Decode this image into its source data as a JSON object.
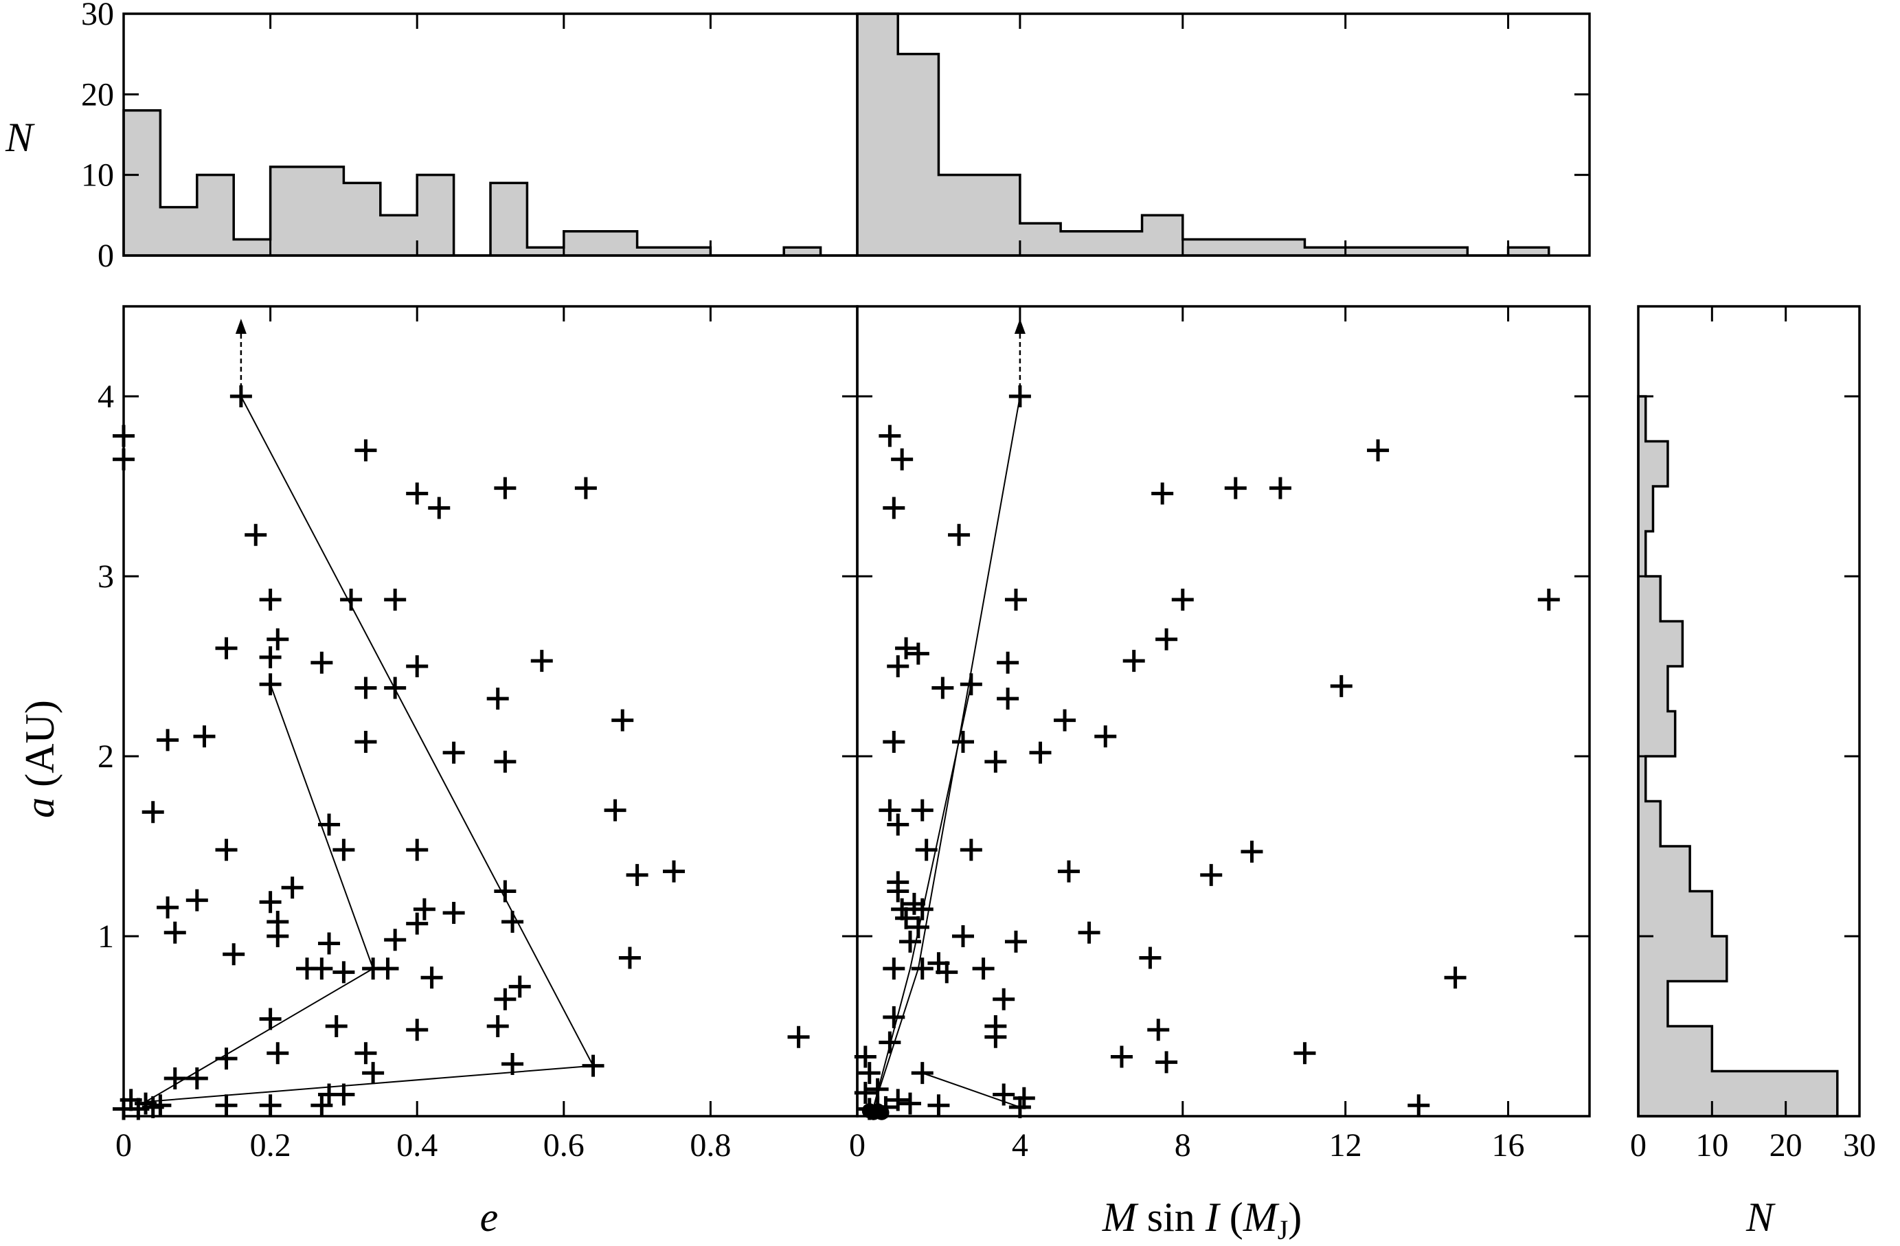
{
  "chart_data": [
    {
      "id": "hist_e",
      "type": "histogram",
      "ylabel": "N",
      "ylim": [
        0,
        30
      ],
      "yticks": [
        0,
        10,
        20,
        30
      ],
      "xlim": [
        0,
        1
      ],
      "bins": [
        {
          "x0": 0.0,
          "x1": 0.05,
          "n": 18
        },
        {
          "x0": 0.05,
          "x1": 0.1,
          "n": 6
        },
        {
          "x0": 0.1,
          "x1": 0.15,
          "n": 10
        },
        {
          "x0": 0.15,
          "x1": 0.2,
          "n": 2
        },
        {
          "x0": 0.2,
          "x1": 0.25,
          "n": 11
        },
        {
          "x0": 0.25,
          "x1": 0.3,
          "n": 11
        },
        {
          "x0": 0.3,
          "x1": 0.35,
          "n": 9
        },
        {
          "x0": 0.35,
          "x1": 0.4,
          "n": 5
        },
        {
          "x0": 0.4,
          "x1": 0.45,
          "n": 10
        },
        {
          "x0": 0.45,
          "x1": 0.5,
          "n": 0
        },
        {
          "x0": 0.5,
          "x1": 0.55,
          "n": 9
        },
        {
          "x0": 0.55,
          "x1": 0.6,
          "n": 1
        },
        {
          "x0": 0.6,
          "x1": 0.65,
          "n": 3
        },
        {
          "x0": 0.65,
          "x1": 0.7,
          "n": 3
        },
        {
          "x0": 0.7,
          "x1": 0.75,
          "n": 1
        },
        {
          "x0": 0.75,
          "x1": 0.8,
          "n": 1
        },
        {
          "x0": 0.8,
          "x1": 0.85,
          "n": 0
        },
        {
          "x0": 0.85,
          "x1": 0.9,
          "n": 0
        },
        {
          "x0": 0.9,
          "x1": 0.95,
          "n": 1
        },
        {
          "x0": 0.95,
          "x1": 1.0,
          "n": 0
        }
      ]
    },
    {
      "id": "hist_m",
      "type": "histogram",
      "ylim": [
        0,
        30
      ],
      "xlim": [
        0,
        18
      ],
      "bins": [
        {
          "x0": 0,
          "x1": 1,
          "n": 30
        },
        {
          "x0": 1,
          "x1": 2,
          "n": 25
        },
        {
          "x0": 2,
          "x1": 4,
          "n": 10
        },
        {
          "x0": 4,
          "x1": 5,
          "n": 4
        },
        {
          "x0": 5,
          "x1": 7,
          "n": 3
        },
        {
          "x0": 7,
          "x1": 8,
          "n": 5
        },
        {
          "x0": 8,
          "x1": 11,
          "n": 2
        },
        {
          "x0": 11,
          "x1": 15,
          "n": 1
        },
        {
          "x0": 15,
          "x1": 16,
          "n": 0
        },
        {
          "x0": 16,
          "x1": 17,
          "n": 1
        }
      ]
    },
    {
      "id": "hist_a",
      "type": "histogram",
      "orientation": "horizontal",
      "xlabel": "N",
      "xlim": [
        0,
        30
      ],
      "xticks": [
        0,
        10,
        20,
        30
      ],
      "ylim": [
        0,
        4.5
      ],
      "bins": [
        {
          "y0": 0.0,
          "y1": 0.25,
          "n": 27
        },
        {
          "y0": 0.25,
          "y1": 0.5,
          "n": 10
        },
        {
          "y0": 0.5,
          "y1": 0.75,
          "n": 4
        },
        {
          "y0": 0.75,
          "y1": 1.0,
          "n": 12
        },
        {
          "y0": 1.0,
          "y1": 1.25,
          "n": 10
        },
        {
          "y0": 1.25,
          "y1": 1.5,
          "n": 7
        },
        {
          "y0": 1.5,
          "y1": 1.75,
          "n": 3
        },
        {
          "y0": 1.75,
          "y1": 2.0,
          "n": 1
        },
        {
          "y0": 2.0,
          "y1": 2.25,
          "n": 5
        },
        {
          "y0": 2.25,
          "y1": 2.5,
          "n": 4
        },
        {
          "y0": 2.5,
          "y1": 2.75,
          "n": 6
        },
        {
          "y0": 2.75,
          "y1": 3.0,
          "n": 3
        },
        {
          "y0": 3.0,
          "y1": 3.25,
          "n": 1
        },
        {
          "y0": 3.25,
          "y1": 3.5,
          "n": 2
        },
        {
          "y0": 3.5,
          "y1": 3.75,
          "n": 4
        },
        {
          "y0": 3.75,
          "y1": 4.0,
          "n": 1
        }
      ]
    },
    {
      "id": "scatter_e",
      "type": "scatter",
      "xlabel": "e",
      "ylabel": "a (AU)",
      "xlim": [
        0,
        1
      ],
      "ylim": [
        0,
        4.5
      ],
      "xticks": [
        0,
        0.2,
        0.4,
        0.6,
        0.8
      ],
      "xtick_labels": [
        "0",
        "0.2",
        "0.4",
        "0.6",
        "0.8"
      ],
      "yticks": [
        1,
        2,
        3,
        4
      ],
      "marker": "+",
      "points": [
        [
          0.16,
          4.0
        ],
        [
          0.0,
          3.78
        ],
        [
          0.0,
          3.65
        ],
        [
          0.33,
          3.7
        ],
        [
          0.4,
          3.46
        ],
        [
          0.43,
          3.38
        ],
        [
          0.52,
          3.49
        ],
        [
          0.63,
          3.49
        ],
        [
          0.18,
          3.23
        ],
        [
          0.2,
          2.87
        ],
        [
          0.31,
          2.87
        ],
        [
          0.37,
          2.87
        ],
        [
          0.14,
          2.6
        ],
        [
          0.21,
          2.65
        ],
        [
          0.2,
          2.55
        ],
        [
          0.27,
          2.52
        ],
        [
          0.4,
          2.5
        ],
        [
          0.57,
          2.53
        ],
        [
          0.2,
          2.4
        ],
        [
          0.33,
          2.38
        ],
        [
          0.37,
          2.38
        ],
        [
          0.51,
          2.32
        ],
        [
          0.68,
          2.2
        ],
        [
          0.06,
          2.09
        ],
        [
          0.11,
          2.11
        ],
        [
          0.33,
          2.08
        ],
        [
          0.45,
          2.02
        ],
        [
          0.52,
          1.97
        ],
        [
          0.04,
          1.69
        ],
        [
          0.67,
          1.7
        ],
        [
          0.28,
          1.62
        ],
        [
          0.14,
          1.48
        ],
        [
          0.3,
          1.48
        ],
        [
          0.4,
          1.48
        ],
        [
          0.7,
          1.34
        ],
        [
          0.75,
          1.36
        ],
        [
          0.23,
          1.27
        ],
        [
          0.52,
          1.25
        ],
        [
          0.1,
          1.2
        ],
        [
          0.06,
          1.16
        ],
        [
          0.2,
          1.19
        ],
        [
          0.41,
          1.15
        ],
        [
          0.45,
          1.13
        ],
        [
          0.21,
          1.08
        ],
        [
          0.4,
          1.07
        ],
        [
          0.53,
          1.08
        ],
        [
          0.07,
          1.02
        ],
        [
          0.21,
          1.0
        ],
        [
          0.37,
          0.98
        ],
        [
          0.28,
          0.96
        ],
        [
          0.15,
          0.9
        ],
        [
          0.69,
          0.88
        ],
        [
          0.27,
          0.82
        ],
        [
          0.3,
          0.8
        ],
        [
          0.34,
          0.82
        ],
        [
          0.36,
          0.82
        ],
        [
          0.25,
          0.82
        ],
        [
          0.42,
          0.77
        ],
        [
          0.54,
          0.72
        ],
        [
          0.52,
          0.65
        ],
        [
          0.2,
          0.54
        ],
        [
          0.29,
          0.5
        ],
        [
          0.4,
          0.48
        ],
        [
          0.51,
          0.5
        ],
        [
          0.92,
          0.44
        ],
        [
          0.21,
          0.35
        ],
        [
          0.33,
          0.35
        ],
        [
          0.14,
          0.32
        ],
        [
          0.53,
          0.29
        ],
        [
          0.64,
          0.28
        ],
        [
          0.34,
          0.24
        ],
        [
          0.07,
          0.21
        ],
        [
          0.1,
          0.21
        ],
        [
          0.28,
          0.12
        ],
        [
          0.3,
          0.12
        ],
        [
          0.01,
          0.09
        ],
        [
          0.03,
          0.07
        ],
        [
          0.05,
          0.06
        ],
        [
          0.14,
          0.06
        ],
        [
          0.2,
          0.06
        ],
        [
          0.27,
          0.06
        ],
        [
          0.0,
          0.04
        ],
        [
          0.02,
          0.04
        ],
        [
          0.04,
          0.05
        ]
      ],
      "connecting_lines": [
        [
          [
            0.16,
            4.0
          ],
          [
            0.64,
            0.28
          ],
          [
            0.03,
            0.08
          ]
        ],
        [
          [
            0.2,
            2.4
          ],
          [
            0.34,
            0.82
          ],
          [
            0.03,
            0.08
          ]
        ]
      ],
      "arrow_up_at_x": 0.16
    },
    {
      "id": "scatter_m",
      "type": "scatter",
      "xlabel": "M sin I (MJ)",
      "xlim": [
        0,
        18
      ],
      "ylim": [
        0,
        4.5
      ],
      "xticks": [
        0,
        4,
        8,
        12,
        16
      ],
      "xtick_labels": [
        "0",
        "4",
        "8",
        "12",
        "16"
      ],
      "yticks": [
        1,
        2,
        3,
        4
      ],
      "marker": "+",
      "points": [
        [
          4.0,
          4.0
        ],
        [
          0.8,
          3.78
        ],
        [
          1.1,
          3.65
        ],
        [
          12.8,
          3.7
        ],
        [
          0.9,
          3.38
        ],
        [
          7.5,
          3.46
        ],
        [
          9.3,
          3.49
        ],
        [
          10.4,
          3.49
        ],
        [
          2.5,
          3.23
        ],
        [
          3.9,
          2.87
        ],
        [
          8.0,
          2.87
        ],
        [
          17.0,
          2.87
        ],
        [
          1.2,
          2.6
        ],
        [
          1.5,
          2.57
        ],
        [
          1.0,
          2.5
        ],
        [
          3.7,
          2.52
        ],
        [
          6.8,
          2.53
        ],
        [
          7.6,
          2.65
        ],
        [
          2.1,
          2.38
        ],
        [
          2.8,
          2.4
        ],
        [
          3.7,
          2.32
        ],
        [
          11.9,
          2.39
        ],
        [
          5.1,
          2.2
        ],
        [
          0.9,
          2.08
        ],
        [
          2.6,
          2.08
        ],
        [
          6.1,
          2.11
        ],
        [
          3.4,
          1.97
        ],
        [
          4.5,
          2.02
        ],
        [
          0.8,
          1.7
        ],
        [
          1.6,
          1.7
        ],
        [
          1.0,
          1.62
        ],
        [
          1.7,
          1.48
        ],
        [
          2.8,
          1.48
        ],
        [
          9.7,
          1.47
        ],
        [
          1.0,
          1.3
        ],
        [
          5.2,
          1.36
        ],
        [
          8.7,
          1.34
        ],
        [
          1.0,
          1.25
        ],
        [
          1.4,
          1.18
        ],
        [
          1.1,
          1.15
        ],
        [
          1.6,
          1.15
        ],
        [
          1.2,
          1.1
        ],
        [
          1.5,
          1.05
        ],
        [
          1.3,
          0.97
        ],
        [
          2.6,
          1.0
        ],
        [
          3.9,
          0.97
        ],
        [
          5.7,
          1.02
        ],
        [
          0.9,
          0.82
        ],
        [
          1.6,
          0.82
        ],
        [
          2.0,
          0.85
        ],
        [
          2.2,
          0.8
        ],
        [
          3.1,
          0.82
        ],
        [
          7.2,
          0.88
        ],
        [
          14.7,
          0.77
        ],
        [
          3.6,
          0.65
        ],
        [
          0.9,
          0.55
        ],
        [
          3.4,
          0.5
        ],
        [
          7.4,
          0.48
        ],
        [
          0.8,
          0.41
        ],
        [
          3.4,
          0.44
        ],
        [
          0.2,
          0.33
        ],
        [
          6.5,
          0.33
        ],
        [
          7.6,
          0.3
        ],
        [
          11.0,
          0.35
        ],
        [
          0.3,
          0.24
        ],
        [
          1.6,
          0.24
        ],
        [
          0.5,
          0.15
        ],
        [
          0.2,
          0.13
        ],
        [
          3.6,
          0.12
        ],
        [
          4.1,
          0.1
        ],
        [
          1.0,
          0.09
        ],
        [
          1.3,
          0.07
        ],
        [
          4.0,
          0.05
        ],
        [
          13.8,
          0.06
        ],
        [
          2.0,
          0.06
        ],
        [
          0.3,
          0.04
        ],
        [
          0.5,
          0.05
        ],
        [
          0.7,
          0.05
        ]
      ],
      "filled_points": [
        [
          0.3,
          0.03
        ],
        [
          0.4,
          0.02
        ],
        [
          0.5,
          0.03
        ],
        [
          0.6,
          0.02
        ]
      ],
      "connecting_lines": [
        [
          [
            4.0,
            4.0
          ],
          [
            1.5,
            0.82
          ],
          [
            0.4,
            0.05
          ]
        ],
        [
          [
            2.8,
            2.4
          ],
          [
            1.3,
            0.82
          ],
          [
            0.4,
            0.05
          ]
        ],
        [
          [
            1.6,
            0.24
          ],
          [
            4.0,
            0.05
          ]
        ]
      ],
      "arrow_up_at_x": 4.0
    }
  ]
}
